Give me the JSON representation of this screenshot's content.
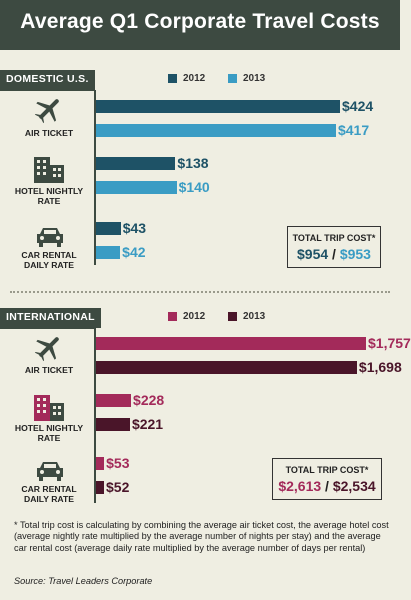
{
  "header": {
    "title": "Average Q1 Corporate Travel Costs"
  },
  "colors": {
    "header_bg": "#3d4a41",
    "domestic_2012": "#1e5266",
    "domestic_2013": "#3a9cc4",
    "intl_2012": "#a32a5a",
    "intl_2013": "#4a1529"
  },
  "icons": [
    "airplane-icon",
    "hotel-icon",
    "car-icon"
  ],
  "chart_data": [
    {
      "type": "bar",
      "section": "DOMESTIC U.S.",
      "series": [
        {
          "name": "2012",
          "values": [
            424,
            138,
            43
          ],
          "labels": [
            "$424",
            "$138",
            "$43"
          ]
        },
        {
          "name": "2013",
          "values": [
            417,
            140,
            42
          ],
          "labels": [
            "$417",
            "$140",
            "$42"
          ]
        }
      ],
      "categories": [
        "AIR TICKET",
        "HOTEL NIGHTLY RATE",
        "CAR RENTAL DAILY RATE"
      ],
      "total": {
        "label": "TOTAL TRIP COST*",
        "value_2012": "$954",
        "value_2013": "$953"
      }
    },
    {
      "type": "bar",
      "section": "INTERNATIONAL",
      "series": [
        {
          "name": "2012",
          "values": [
            1757,
            228,
            53
          ],
          "labels": [
            "$1,757",
            "$228",
            "$53"
          ]
        },
        {
          "name": "2013",
          "values": [
            1698,
            221,
            52
          ],
          "labels": [
            "$1,698",
            "$221",
            "$52"
          ]
        }
      ],
      "categories": [
        "AIR TICKET",
        "HOTEL NIGHTLY RATE",
        "CAR RENTAL DAILY RATE"
      ],
      "total": {
        "label": "TOTAL TRIP COST*",
        "value_2012": "$2,613",
        "value_2013": "$2,534"
      }
    }
  ],
  "footnote": "* Total trip cost is calculating by combining the average air ticket cost, the average hotel cost (average nightly rate multiplied by the average number of nights per stay) and the average car rental cost (average daily rate multiplied by the average number of days per rental)",
  "source": "Source: Travel Leaders Corporate"
}
